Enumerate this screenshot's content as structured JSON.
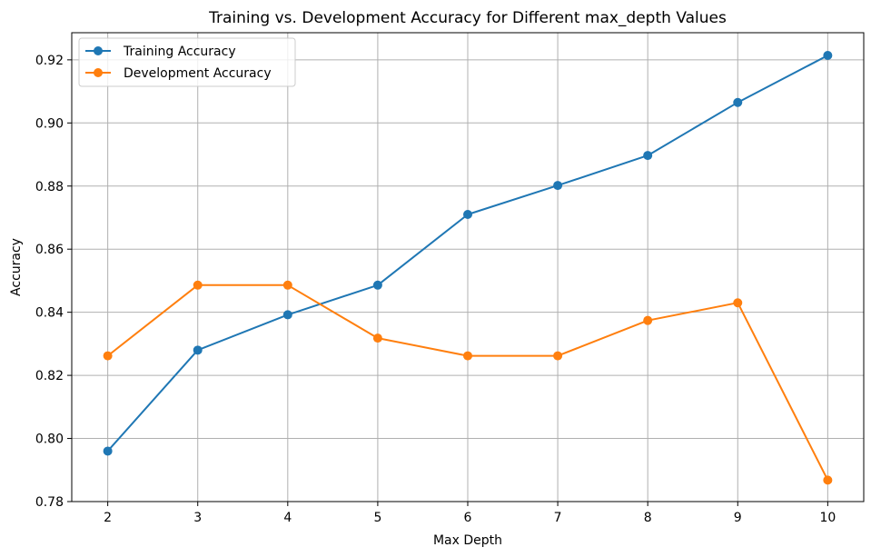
{
  "chart_data": {
    "type": "line",
    "title": "Training vs. Development Accuracy for Different max_depth Values",
    "xlabel": "Max Depth",
    "ylabel": "Accuracy",
    "x": [
      2,
      3,
      4,
      5,
      6,
      7,
      8,
      9,
      10
    ],
    "xticks": [
      "2",
      "3",
      "4",
      "5",
      "6",
      "7",
      "8",
      "9",
      "10"
    ],
    "yticks": [
      "0.78",
      "0.80",
      "0.82",
      "0.84",
      "0.86",
      "0.88",
      "0.90",
      "0.92"
    ],
    "yticks_values": [
      0.78,
      0.8,
      0.82,
      0.84,
      0.86,
      0.88,
      0.9,
      0.92
    ],
    "xlim": [
      1.6,
      10.4
    ],
    "ylim": [
      0.78,
      0.9286
    ],
    "grid": true,
    "legend_position": "upper-left",
    "series": [
      {
        "name": "Training Accuracy",
        "color": "#1f77b4",
        "values": [
          0.796,
          0.828,
          0.8392,
          0.8486,
          0.871,
          0.8802,
          0.8897,
          0.9065,
          0.9214
        ]
      },
      {
        "name": "Development Accuracy",
        "color": "#ff7f0e",
        "values": [
          0.8262,
          0.8486,
          0.8486,
          0.8318,
          0.8262,
          0.8262,
          0.8374,
          0.843,
          0.7868
        ]
      }
    ]
  }
}
